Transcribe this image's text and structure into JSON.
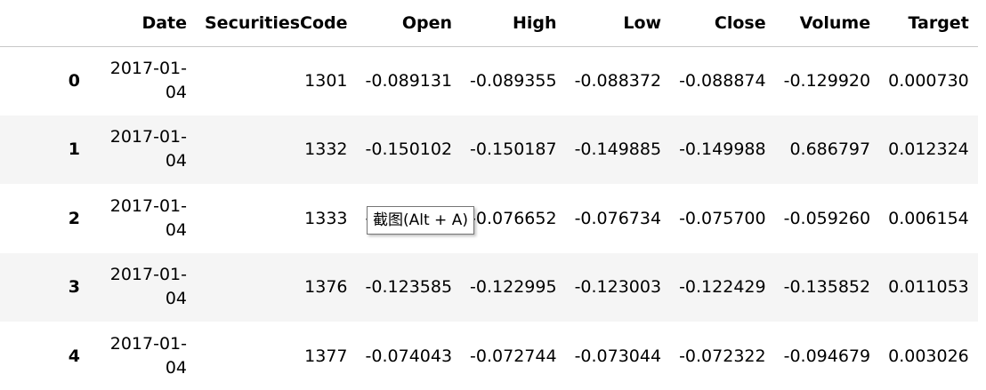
{
  "table": {
    "columns": [
      "",
      "Date",
      "SecuritiesCode",
      "Open",
      "High",
      "Low",
      "Close",
      "Volume",
      "Target"
    ],
    "rows": [
      {
        "index": "0",
        "date_line1": "2017-01-",
        "date_line2": "04",
        "code": "1301",
        "open": "-0.089131",
        "high": "-0.089355",
        "low": "-0.088372",
        "close": "-0.088874",
        "volume": "-0.129920",
        "target": "0.000730"
      },
      {
        "index": "1",
        "date_line1": "2017-01-",
        "date_line2": "04",
        "code": "1332",
        "open": "-0.150102",
        "high": "-0.150187",
        "low": "-0.149885",
        "close": "-0.149988",
        "volume": "0.686797",
        "target": "0.012324"
      },
      {
        "index": "2",
        "date_line1": "2017-01-",
        "date_line2": "04",
        "code": "1333",
        "open": "-0.",
        "high": "-0.076652",
        "low": "-0.076734",
        "close": "-0.075700",
        "volume": "-0.059260",
        "target": "0.006154"
      },
      {
        "index": "3",
        "date_line1": "2017-01-",
        "date_line2": "04",
        "code": "1376",
        "open": "-0.123585",
        "high": "-0.122995",
        "low": "-0.123003",
        "close": "-0.122429",
        "volume": "-0.135852",
        "target": "0.011053"
      },
      {
        "index": "4",
        "date_line1": "2017-01-",
        "date_line2": "04",
        "code": "1377",
        "open": "-0.074043",
        "high": "-0.072744",
        "low": "-0.073044",
        "close": "-0.072322",
        "volume": "-0.094679",
        "target": "0.003026"
      }
    ]
  },
  "tooltip": {
    "text": "截图(Alt + A)"
  }
}
